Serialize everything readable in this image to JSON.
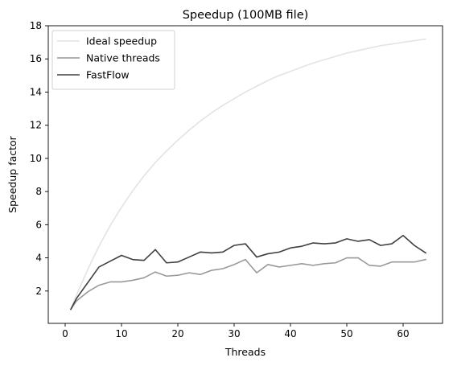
{
  "chart_data": {
    "type": "line",
    "title": "Speedup (100MB file)",
    "xlabel": "Threads",
    "ylabel": "Speedup factor",
    "xlim": [
      -3,
      67
    ],
    "ylim": [
      0.05,
      18
    ],
    "xticks": [
      0,
      10,
      20,
      30,
      40,
      50,
      60
    ],
    "yticks": [
      2,
      4,
      6,
      8,
      10,
      12,
      14,
      16,
      18
    ],
    "grid": false,
    "legend_position": "top-left",
    "x": [
      1,
      2,
      4,
      6,
      8,
      10,
      12,
      14,
      16,
      18,
      20,
      22,
      24,
      26,
      28,
      30,
      32,
      34,
      36,
      38,
      40,
      42,
      44,
      46,
      48,
      50,
      52,
      54,
      56,
      58,
      60,
      62,
      64
    ],
    "series": [
      {
        "name": "Ideal speedup",
        "color": "#e3e3e3",
        "values": [
          0.9,
          1.75,
          3.3,
          4.7,
          5.95,
          7.05,
          8.05,
          8.95,
          9.75,
          10.45,
          11.1,
          11.7,
          12.25,
          12.75,
          13.2,
          13.6,
          14.0,
          14.35,
          14.7,
          15.0,
          15.25,
          15.5,
          15.75,
          15.95,
          16.15,
          16.35,
          16.5,
          16.65,
          16.8,
          16.9,
          17.0,
          17.1,
          17.2
        ]
      },
      {
        "name": "Native threads",
        "color": "#999999",
        "values": [
          0.9,
          1.4,
          1.95,
          2.35,
          2.55,
          2.55,
          2.65,
          2.8,
          3.15,
          2.9,
          2.95,
          3.1,
          3.0,
          3.25,
          3.35,
          3.6,
          3.9,
          3.1,
          3.6,
          3.45,
          3.55,
          3.65,
          3.55,
          3.65,
          3.7,
          4.0,
          4.0,
          3.55,
          3.5,
          3.75,
          3.75,
          3.75,
          3.9
        ]
      },
      {
        "name": "FastFlow",
        "color": "#404040",
        "values": [
          0.9,
          1.55,
          2.5,
          3.45,
          3.8,
          4.15,
          3.9,
          3.85,
          4.5,
          3.7,
          3.75,
          4.05,
          4.35,
          4.3,
          4.35,
          4.75,
          4.85,
          4.05,
          4.25,
          4.35,
          4.6,
          4.7,
          4.9,
          4.85,
          4.9,
          5.15,
          5.0,
          5.1,
          4.75,
          4.85,
          5.35,
          4.75,
          4.3
        ]
      }
    ]
  }
}
